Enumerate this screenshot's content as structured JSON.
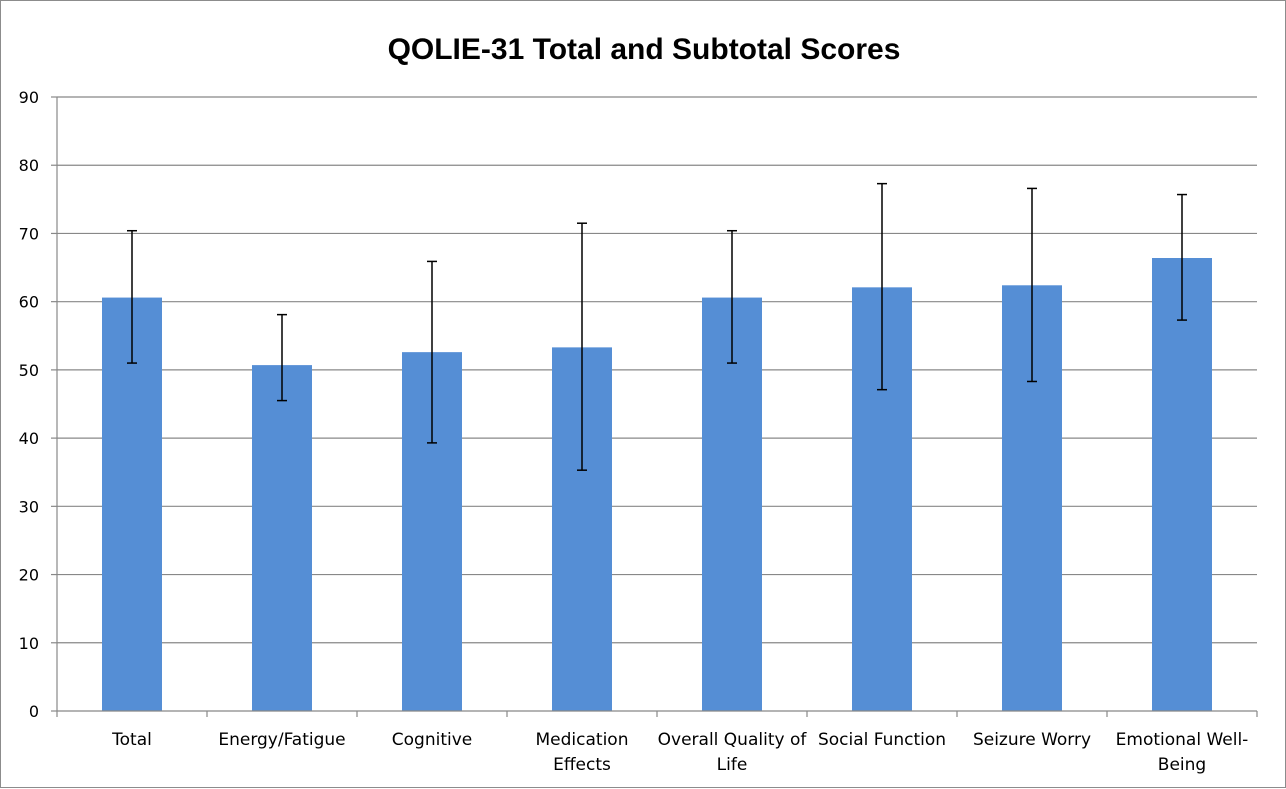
{
  "chart_data": {
    "type": "bar",
    "title": "QOLIE-31 Total and Subtotal Scores",
    "xlabel": "",
    "ylabel": "",
    "ylim": [
      0,
      90
    ],
    "yticks": [
      0,
      10,
      20,
      30,
      40,
      50,
      60,
      70,
      80,
      90
    ],
    "grid": true,
    "legend": "none",
    "categories": [
      [
        "Total"
      ],
      [
        "Energy/Fatigue"
      ],
      [
        "Cognitive"
      ],
      [
        "Medication",
        "Effects"
      ],
      [
        "Overall Quality of",
        "Life"
      ],
      [
        "Social Function"
      ],
      [
        "Seizure Worry"
      ],
      [
        "Emotional Well-",
        "Being"
      ]
    ],
    "values": [
      60.6,
      50.7,
      52.6,
      53.3,
      60.6,
      62.1,
      62.4,
      66.4
    ],
    "error_low": [
      51.0,
      45.5,
      39.3,
      35.3,
      51.0,
      47.1,
      48.3,
      57.3
    ],
    "error_high": [
      70.4,
      58.1,
      65.9,
      71.5,
      70.4,
      77.3,
      76.6,
      75.7
    ],
    "colors": {
      "bar": "#558ed5",
      "grid": "#888888",
      "axis": "#888888",
      "error_bar": "#000000"
    }
  }
}
